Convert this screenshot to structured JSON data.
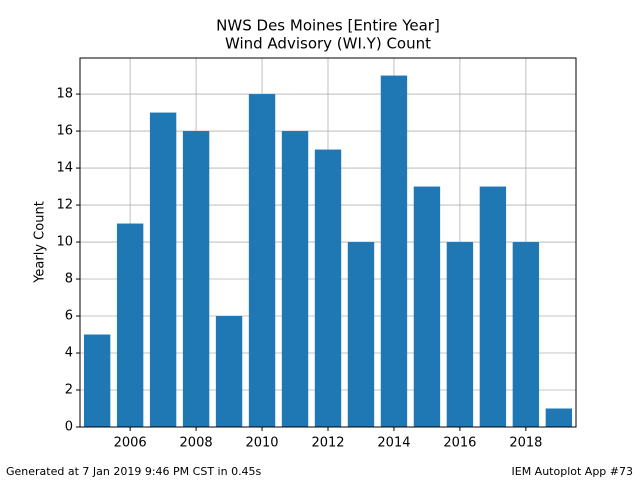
{
  "chart_data": {
    "type": "bar",
    "title": "NWS Des Moines [Entire Year]",
    "subtitle": "Wind Advisory (WI.Y) Count",
    "y_label": "Yearly Count",
    "x": [
      2005,
      2006,
      2007,
      2008,
      2009,
      2010,
      2011,
      2012,
      2013,
      2014,
      2015,
      2016,
      2017,
      2018,
      2019
    ],
    "values": [
      5,
      11,
      17,
      16,
      6,
      18,
      16,
      15,
      10,
      19,
      13,
      10,
      13,
      10,
      1
    ],
    "color": "#1f77b4",
    "xlim": [
      2004.48,
      2019.52
    ],
    "xticks": [
      2006,
      2008,
      2010,
      2012,
      2014,
      2016,
      2018
    ],
    "ylim": [
      0,
      19.95
    ],
    "yticks": [
      0,
      2,
      4,
      6,
      8,
      10,
      12,
      14,
      16,
      18
    ],
    "grid": true
  },
  "footer": {
    "left": "Generated at 7 Jan 2019 9:46 PM CST in 0.45s",
    "right": "IEM Autoplot App #73"
  }
}
